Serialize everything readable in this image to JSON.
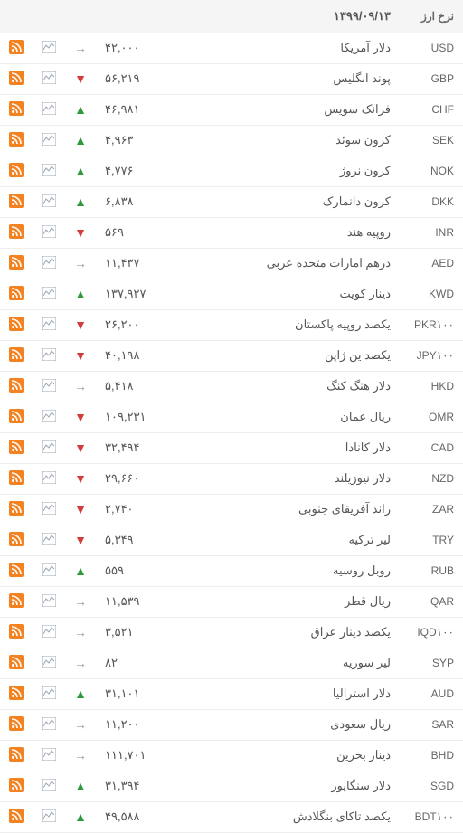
{
  "header": {
    "currency_label": "نرخ ارز",
    "date": "۱۳۹۹/۰۹/۱۳"
  },
  "colors": {
    "rss_bg": "#f58220",
    "up": "#2e9b3a",
    "down": "#d43b3b",
    "neutral": "#999999",
    "chart_stroke": "#9aa6b2"
  },
  "rows": [
    {
      "code": "USD",
      "name": "دلار آمریکا",
      "rate": "۴۲,۰۰۰",
      "trend": "neutral"
    },
    {
      "code": "GBP",
      "name": "پوند انگلیس",
      "rate": "۵۶,۲۱۹",
      "trend": "down"
    },
    {
      "code": "CHF",
      "name": "فرانک سویس",
      "rate": "۴۶,۹۸۱",
      "trend": "up"
    },
    {
      "code": "SEK",
      "name": "کرون سوئد",
      "rate": "۴,۹۶۳",
      "trend": "up"
    },
    {
      "code": "NOK",
      "name": "کرون نروژ",
      "rate": "۴,۷۷۶",
      "trend": "up"
    },
    {
      "code": "DKK",
      "name": "کرون دانمارک",
      "rate": "۶,۸۳۸",
      "trend": "up"
    },
    {
      "code": "INR",
      "name": "روپیه هند",
      "rate": "۵۶۹",
      "trend": "down"
    },
    {
      "code": "AED",
      "name": "درهم امارات متحده عربی",
      "rate": "۱۱,۴۳۷",
      "trend": "neutral"
    },
    {
      "code": "KWD",
      "name": "دینار کویت",
      "rate": "۱۳۷,۹۲۷",
      "trend": "up"
    },
    {
      "code": "PKR۱۰۰",
      "name": "یکصد روپیه پاکستان",
      "rate": "۲۶,۲۰۰",
      "trend": "down"
    },
    {
      "code": "JPY۱۰۰",
      "name": "یکصد ین ژاپن",
      "rate": "۴۰,۱۹۸",
      "trend": "down"
    },
    {
      "code": "HKD",
      "name": "دلار هنگ کنگ",
      "rate": "۵,۴۱۸",
      "trend": "neutral"
    },
    {
      "code": "OMR",
      "name": "ریال عمان",
      "rate": "۱۰۹,۲۳۱",
      "trend": "down"
    },
    {
      "code": "CAD",
      "name": "دلار کانادا",
      "rate": "۳۲,۴۹۴",
      "trend": "down"
    },
    {
      "code": "NZD",
      "name": "دلار نیوزیلند",
      "rate": "۲۹,۶۶۰",
      "trend": "down"
    },
    {
      "code": "ZAR",
      "name": "راند آفریقای جنوبی",
      "rate": "۲,۷۴۰",
      "trend": "down"
    },
    {
      "code": "TRY",
      "name": "لیر ترکیه",
      "rate": "۵,۳۴۹",
      "trend": "down"
    },
    {
      "code": "RUB",
      "name": "روبل روسیه",
      "rate": "۵۵۹",
      "trend": "up"
    },
    {
      "code": "QAR",
      "name": "ریال قطر",
      "rate": "۱۱,۵۳۹",
      "trend": "neutral"
    },
    {
      "code": "IQD۱۰۰",
      "name": "یکصد دینار عراق",
      "rate": "۳,۵۲۱",
      "trend": "neutral"
    },
    {
      "code": "SYP",
      "name": "لیر سوریه",
      "rate": "۸۲",
      "trend": "neutral"
    },
    {
      "code": "AUD",
      "name": "دلار استرالیا",
      "rate": "۳۱,۱۰۱",
      "trend": "up"
    },
    {
      "code": "SAR",
      "name": "ریال سعودی",
      "rate": "۱۱,۲۰۰",
      "trend": "neutral"
    },
    {
      "code": "BHD",
      "name": "دینار بحرین",
      "rate": "۱۱۱,۷۰۱",
      "trend": "neutral"
    },
    {
      "code": "SGD",
      "name": "دلار سنگاپور",
      "rate": "۳۱,۳۹۴",
      "trend": "up"
    },
    {
      "code": "BDT۱۰۰",
      "name": "یکصد تاکای بنگلادش",
      "rate": "۴۹,۵۸۸",
      "trend": "up"
    }
  ]
}
